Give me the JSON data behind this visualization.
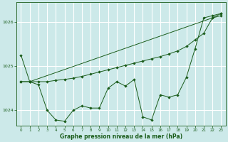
{
  "background_color": "#cce9e9",
  "grid_color": "#ffffff",
  "line_color": "#1a5c1a",
  "marker_color": "#1a5c1a",
  "xlabel": "Graphe pression niveau de la mer (hPa)",
  "xlim": [
    -0.5,
    23.5
  ],
  "ylim": [
    1023.65,
    1026.45
  ],
  "yticks": [
    1024,
    1025,
    1026
  ],
  "xticks": [
    0,
    1,
    2,
    3,
    4,
    5,
    6,
    7,
    8,
    9,
    10,
    11,
    12,
    13,
    14,
    15,
    16,
    17,
    18,
    19,
    20,
    21,
    22,
    23
  ],
  "series1_x": [
    0,
    1,
    2,
    3,
    4,
    5,
    6,
    7,
    8,
    9,
    10,
    11,
    12,
    13,
    14,
    15,
    16,
    17,
    18,
    19,
    20,
    21,
    22,
    23
  ],
  "series1_y": [
    1025.25,
    1024.65,
    1024.58,
    1024.0,
    1023.78,
    1023.75,
    1024.0,
    1024.1,
    1024.05,
    1024.05,
    1024.5,
    1024.65,
    1024.55,
    1024.7,
    1023.85,
    1023.78,
    1024.35,
    1024.3,
    1024.35,
    1024.75,
    1025.4,
    1026.1,
    1026.15,
    1026.2
  ],
  "series2_x": [
    0,
    1,
    2,
    3,
    4,
    5,
    6,
    7,
    8,
    9,
    10,
    11,
    12,
    13,
    14,
    15,
    16,
    17,
    18,
    19,
    20,
    21,
    22,
    23
  ],
  "series2_y": [
    1024.65,
    1024.65,
    1024.65,
    1024.65,
    1024.68,
    1024.7,
    1024.73,
    1024.77,
    1024.82,
    1024.87,
    1024.92,
    1024.97,
    1025.02,
    1025.07,
    1025.12,
    1025.17,
    1025.22,
    1025.28,
    1025.35,
    1025.45,
    1025.6,
    1025.75,
    1026.1,
    1026.15
  ],
  "series3_x": [
    0,
    1,
    22,
    23
  ],
  "series3_y": [
    1024.65,
    1024.65,
    1026.1,
    1026.2
  ]
}
